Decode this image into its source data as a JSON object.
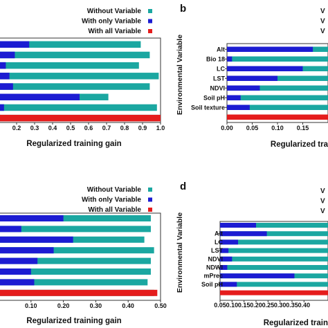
{
  "colors": {
    "without": "#1ba7a1",
    "only": "#1c1cd2",
    "all": "#e51c1c"
  },
  "chart_data": [
    {
      "id": "a",
      "type": "bar",
      "orientation": "horizontal",
      "panel_label": "",
      "xlabel": "Regularized training gain",
      "ylabel": "",
      "xlim": [
        0.1,
        1.0
      ],
      "xticks": [
        0.1,
        0.2,
        0.3,
        0.4,
        0.5,
        0.6,
        0.7,
        0.8,
        0.9,
        1.0
      ],
      "xtick_labels": [
        ".1",
        "0.2",
        "0.3",
        "0.4",
        "0.5",
        "0.6",
        "0.7",
        "0.8",
        "0.9",
        "1.0"
      ],
      "legend": [
        "Without Variable",
        "With only Variable",
        "With all Variable"
      ],
      "legend_position": "top-right",
      "categories": [
        "",
        "",
        "",
        "",
        "",
        "",
        "",
        ""
      ],
      "series": [
        {
          "name": "Without Variable",
          "values": [
            0.89,
            0.94,
            0.88,
            0.99,
            0.94,
            0.71,
            0.98,
            0.99
          ]
        },
        {
          "name": "With only Variable",
          "values": [
            0.27,
            0.19,
            0.14,
            0.16,
            0.18,
            0.55,
            0.13,
            0.11
          ]
        },
        {
          "name": "With all Variable",
          "values": [
            null,
            null,
            null,
            null,
            null,
            null,
            null,
            1.0
          ]
        }
      ]
    },
    {
      "id": "b",
      "type": "bar",
      "orientation": "horizontal",
      "panel_label": "b",
      "xlabel": "Regularized tra",
      "ylabel": "Environmental Variable",
      "xlim": [
        0.0,
        0.2
      ],
      "xticks": [
        0.0,
        0.05,
        0.1,
        0.15
      ],
      "xtick_labels": [
        "0.00",
        "0.05",
        "0.10",
        "0.15"
      ],
      "legend": [
        "V",
        "V",
        "V"
      ],
      "legend_position": "top-right",
      "categories": [
        "Alt",
        "Bio 18",
        "LC",
        "LST",
        "NDVI",
        "Soil pH",
        "Soil texture",
        ""
      ],
      "series": [
        {
          "name": "Without Variable",
          "values": [
            0.2,
            0.2,
            0.2,
            0.2,
            0.2,
            0.2,
            0.2,
            null
          ]
        },
        {
          "name": "With only Variable",
          "values": [
            0.17,
            0.01,
            0.15,
            0.1,
            0.065,
            0.027,
            0.045,
            null
          ]
        },
        {
          "name": "With all Variable",
          "values": [
            null,
            null,
            null,
            null,
            null,
            null,
            null,
            0.2
          ]
        }
      ]
    },
    {
      "id": "c",
      "type": "bar",
      "orientation": "horizontal",
      "panel_label": "",
      "xlabel": "Regularized training gain",
      "ylabel": "",
      "xlim": [
        0.0,
        0.5
      ],
      "xticks": [
        0.1,
        0.2,
        0.3,
        0.4,
        0.5
      ],
      "xtick_labels": [
        "0.10",
        "0.20",
        "0.30",
        "0.40",
        "0.50"
      ],
      "legend": [
        "Without Variable",
        "With only Variable",
        "With all Variable"
      ],
      "legend_position": "top-right",
      "categories": [
        "",
        "",
        "",
        "",
        "",
        "",
        "",
        ""
      ],
      "series": [
        {
          "name": "Without Variable",
          "values": [
            0.47,
            0.47,
            0.45,
            0.48,
            0.47,
            0.47,
            0.46,
            0.48
          ]
        },
        {
          "name": "With only Variable",
          "values": [
            0.2,
            0.07,
            0.23,
            0.17,
            0.12,
            0.1,
            0.11,
            null
          ]
        },
        {
          "name": "With all Variable",
          "values": [
            null,
            null,
            null,
            null,
            null,
            null,
            null,
            0.49
          ]
        }
      ]
    },
    {
      "id": "d",
      "type": "bar",
      "orientation": "horizontal",
      "panel_label": "d",
      "xlabel": "Regularized train",
      "ylabel": "Environmental Variable",
      "xlim": [
        0.05,
        0.5
      ],
      "xticks": [
        0.05,
        0.1,
        0.15,
        0.2,
        0.25,
        0.3,
        0.35,
        0.4
      ],
      "xtick_labels": [
        "0.05",
        "0.10",
        "0.15",
        "0.20",
        "0.25",
        "0.30",
        "0.35",
        "0.40"
      ],
      "legend": [
        "V",
        "V",
        "V"
      ],
      "legend_position": "top-right",
      "categories": [
        "",
        "Alt",
        "LC",
        "LST",
        "NDVI",
        "NDWI",
        "mPrec",
        "Soil pH",
        ""
      ],
      "series": [
        {
          "name": "Without Variable",
          "values": [
            0.5,
            0.5,
            0.5,
            0.5,
            0.5,
            0.5,
            0.5,
            0.5,
            null
          ]
        },
        {
          "name": "With only Variable",
          "values": [
            0.2,
            0.245,
            0.125,
            0.085,
            0.1,
            0.08,
            0.36,
            0.12,
            null
          ]
        },
        {
          "name": "With all Variable",
          "values": [
            null,
            null,
            null,
            null,
            null,
            null,
            null,
            null,
            0.5
          ]
        }
      ]
    }
  ]
}
